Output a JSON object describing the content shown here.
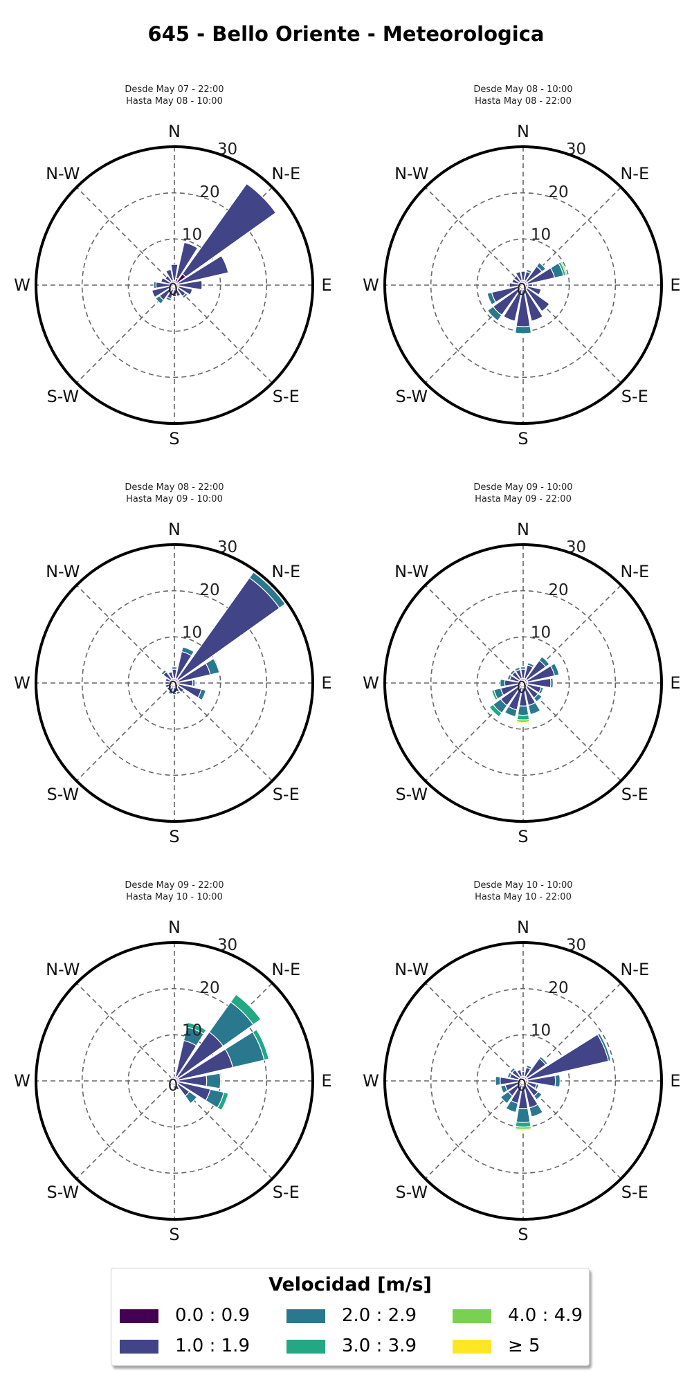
{
  "title": "645 - Bello Oriente - Meteorologica",
  "legend": {
    "title": "Velocidad [m/s]",
    "bins": [
      {
        "label": "0.0 : 0.9",
        "color": "#440154"
      },
      {
        "label": "1.0 : 1.9",
        "color": "#414487"
      },
      {
        "label": "2.0 : 2.9",
        "color": "#2a788e"
      },
      {
        "label": "3.0 : 3.9",
        "color": "#22a884"
      },
      {
        "label": "4.0 : 4.9",
        "color": "#7ad151"
      },
      {
        "label": "≥  5",
        "color": "#fde725"
      }
    ]
  },
  "chart_data": [
    {
      "type": "windrose",
      "subtitle_line1": "Desde May 07 - 22:00",
      "subtitle_line2": "Hasta May 08 - 10:00",
      "directions": [
        "N",
        "NNE",
        "NE",
        "ENE",
        "E",
        "ESE",
        "SE",
        "SSE",
        "S",
        "SSW",
        "SW",
        "WSW",
        "W",
        "WNW",
        "NW",
        "NNW"
      ],
      "stacks": [
        [
          1,
          3.5,
          0,
          0,
          0,
          0
        ],
        [
          1.5,
          8,
          0,
          0,
          0,
          0
        ],
        [
          3,
          24,
          0,
          0,
          0,
          0
        ],
        [
          1,
          11,
          0,
          0,
          0,
          0
        ],
        [
          1,
          5,
          0,
          0,
          0,
          0
        ],
        [
          1,
          3,
          0,
          0,
          0,
          0
        ],
        [
          1,
          2,
          0.5,
          0,
          0,
          0
        ],
        [
          1,
          1.5,
          0,
          0,
          0,
          0
        ],
        [
          1,
          1.5,
          0,
          0,
          0,
          0
        ],
        [
          1,
          2,
          0.5,
          0,
          0,
          0
        ],
        [
          1,
          3,
          1,
          0,
          0,
          0
        ],
        [
          1,
          4,
          0,
          0,
          0,
          0
        ],
        [
          1,
          3,
          0.5,
          0,
          0,
          0
        ],
        [
          1,
          2,
          0,
          0,
          0,
          0
        ],
        [
          1,
          1.5,
          0,
          0,
          0,
          0
        ],
        [
          1,
          2.5,
          0,
          0,
          0,
          0
        ]
      ],
      "rings": [
        0,
        10,
        20,
        30
      ],
      "rmax": 30,
      "compass_labels": [
        "N",
        "N-E",
        "E",
        "S-E",
        "S",
        "S-W",
        "W",
        "N-W"
      ]
    },
    {
      "type": "windrose",
      "subtitle_line1": "Desde May 08 - 10:00",
      "subtitle_line2": "Hasta May 08 - 22:00",
      "directions": [
        "N",
        "NNE",
        "NE",
        "ENE",
        "E",
        "ESE",
        "SE",
        "SSE",
        "S",
        "SSW",
        "SW",
        "WSW",
        "W",
        "WNW",
        "NW",
        "NNW"
      ],
      "stacks": [
        [
          1,
          2,
          0,
          0,
          0,
          0
        ],
        [
          1,
          2,
          0.5,
          0,
          0,
          0
        ],
        [
          1,
          4,
          1,
          0,
          0,
          0
        ],
        [
          1,
          6,
          2,
          0.5,
          0.3,
          0
        ],
        [
          1,
          1,
          0,
          0,
          0,
          0
        ],
        [
          1,
          3,
          0,
          0,
          0,
          0
        ],
        [
          1,
          6,
          0,
          0,
          0,
          0
        ],
        [
          1,
          7,
          0,
          0,
          0,
          0
        ],
        [
          1,
          8,
          1.5,
          0,
          0,
          0
        ],
        [
          1,
          7,
          0,
          0,
          0,
          0
        ],
        [
          1,
          7,
          1.5,
          0,
          0,
          0
        ],
        [
          1,
          6,
          1,
          0,
          0,
          0
        ],
        [
          1,
          2,
          0,
          0,
          0,
          0
        ],
        [
          1,
          1.5,
          0,
          0,
          0,
          0
        ],
        [
          1,
          1.5,
          0,
          0,
          0,
          0
        ],
        [
          1,
          2,
          0,
          0,
          0,
          0
        ]
      ],
      "rings": [
        0,
        10,
        20,
        30
      ],
      "rmax": 30,
      "compass_labels": [
        "N",
        "N-E",
        "E",
        "S-E",
        "S",
        "S-W",
        "W",
        "N-W"
      ]
    },
    {
      "type": "windrose",
      "subtitle_line1": "Desde May 08 - 22:00",
      "subtitle_line2": "Hasta May 09 - 10:00",
      "directions": [
        "N",
        "NNE",
        "NE",
        "ENE",
        "E",
        "ESE",
        "SE",
        "SSE",
        "S",
        "SSW",
        "SW",
        "WSW",
        "W",
        "WNW",
        "NW",
        "NNW"
      ],
      "stacks": [
        [
          1,
          2,
          0.5,
          0,
          0,
          0
        ],
        [
          1,
          6,
          1,
          0,
          0,
          0
        ],
        [
          1,
          27,
          1.5,
          0,
          0,
          0
        ],
        [
          1,
          7,
          2,
          0,
          0,
          0
        ],
        [
          1,
          3,
          0.5,
          0,
          0,
          0
        ],
        [
          1,
          5,
          1,
          0,
          0,
          0
        ],
        [
          1,
          1.5,
          0,
          0,
          0,
          0
        ],
        [
          1,
          1,
          0.5,
          0,
          0,
          0
        ],
        [
          1,
          1,
          0.5,
          0,
          0,
          0
        ],
        [
          1,
          1,
          0.5,
          0,
          0,
          0
        ],
        [
          1,
          1,
          0,
          0,
          0,
          0
        ],
        [
          1,
          1,
          0,
          0,
          0,
          0
        ],
        [
          1,
          1,
          0,
          0,
          0,
          0
        ],
        [
          1,
          1,
          0,
          0,
          0,
          0
        ],
        [
          1,
          2,
          0.5,
          0,
          0,
          0
        ],
        [
          1,
          1.5,
          0,
          0,
          0,
          0
        ]
      ],
      "rings": [
        0,
        10,
        20,
        30
      ],
      "rmax": 30,
      "compass_labels": [
        "N",
        "N-E",
        "E",
        "S-E",
        "S",
        "S-W",
        "W",
        "N-W"
      ]
    },
    {
      "type": "windrose",
      "subtitle_line1": "Desde May 09 - 10:00",
      "subtitle_line2": "Hasta May 09 - 22:00",
      "directions": [
        "N",
        "NNE",
        "NE",
        "ENE",
        "E",
        "ESE",
        "SE",
        "SSE",
        "S",
        "SSW",
        "SW",
        "WSW",
        "W",
        "WNW",
        "NW",
        "NNW"
      ],
      "stacks": [
        [
          1,
          2,
          0.5,
          0,
          0,
          0
        ],
        [
          1,
          3,
          0.5,
          0,
          0,
          0
        ],
        [
          1,
          5,
          1,
          0,
          0,
          0
        ],
        [
          1,
          6,
          1,
          0,
          0,
          0
        ],
        [
          1,
          5,
          0.5,
          0,
          0,
          0
        ],
        [
          1,
          3,
          0.5,
          0,
          0,
          0
        ],
        [
          1,
          3,
          1,
          0,
          0,
          0
        ],
        [
          1,
          4,
          2,
          0,
          0,
          0
        ],
        [
          1,
          4,
          2,
          1,
          0.5,
          0.3
        ],
        [
          1,
          5,
          1.5,
          0,
          0,
          0
        ],
        [
          1,
          5,
          2,
          1,
          0,
          0
        ],
        [
          1,
          4,
          1.5,
          0.5,
          0,
          0
        ],
        [
          1,
          3,
          1,
          0,
          0,
          0
        ],
        [
          1,
          2,
          0.5,
          0,
          0,
          0
        ],
        [
          1,
          2,
          0.5,
          0,
          0,
          0
        ],
        [
          1,
          2,
          0.5,
          0,
          0,
          0
        ]
      ],
      "rings": [
        0,
        10,
        20,
        30
      ],
      "rmax": 30,
      "compass_labels": [
        "N",
        "N-E",
        "E",
        "S-E",
        "S",
        "S-W",
        "W",
        "N-W"
      ]
    },
    {
      "type": "windrose",
      "subtitle_line1": "Desde May 09 - 22:00",
      "subtitle_line2": "Hasta May 10 - 10:00",
      "directions": [
        "N",
        "NNE",
        "NE",
        "ENE",
        "E",
        "ESE",
        "SE",
        "SSE",
        "S",
        "SSW",
        "SW",
        "WSW",
        "W",
        "WNW",
        "NW",
        "NNW"
      ],
      "stacks": [
        [
          0.5,
          1,
          0,
          0,
          0,
          0
        ],
        [
          1,
          8,
          3,
          1,
          0,
          0
        ],
        [
          1,
          12,
          8,
          2,
          0,
          0
        ],
        [
          1,
          12,
          7,
          1,
          0,
          0
        ],
        [
          1,
          6,
          3,
          0,
          0,
          0
        ],
        [
          1,
          7,
          3,
          1,
          0,
          0
        ],
        [
          1,
          3,
          2,
          0,
          0,
          0
        ],
        [
          1,
          1,
          0,
          0,
          0,
          0
        ],
        [
          0.5,
          0.5,
          0,
          0,
          0,
          0
        ],
        [
          0.5,
          0.5,
          0,
          0,
          0,
          0
        ],
        [
          0.5,
          0.5,
          0,
          0,
          0,
          0
        ],
        [
          0.5,
          0.5,
          0,
          0,
          0,
          0
        ],
        [
          0.5,
          0.5,
          0,
          0,
          0,
          0
        ],
        [
          0.5,
          0.5,
          0,
          0,
          0,
          0
        ],
        [
          0.5,
          0.5,
          0,
          0,
          0,
          0
        ],
        [
          0.5,
          0.5,
          0,
          0,
          0,
          0
        ]
      ],
      "rings": [
        0,
        10,
        20,
        30
      ],
      "rmax": 30,
      "compass_labels": [
        "N",
        "N-E",
        "E",
        "S-E",
        "S",
        "S-W",
        "W",
        "N-W"
      ]
    },
    {
      "type": "windrose",
      "subtitle_line1": "Desde May 10 - 10:00",
      "subtitle_line2": "Hasta May 10 - 22:00",
      "directions": [
        "N",
        "NNE",
        "NE",
        "ENE",
        "E",
        "ESE",
        "SE",
        "SSE",
        "S",
        "SSW",
        "SW",
        "WSW",
        "W",
        "WNW",
        "NW",
        "NNW"
      ],
      "stacks": [
        [
          1,
          1,
          0,
          0,
          0,
          0
        ],
        [
          1,
          2,
          0.5,
          0,
          0,
          0
        ],
        [
          1,
          5,
          0.5,
          0,
          0,
          0
        ],
        [
          1,
          18,
          0.5,
          0,
          0,
          0
        ],
        [
          1,
          6,
          1,
          0,
          0,
          0
        ],
        [
          1,
          2,
          0.5,
          0,
          0,
          0
        ],
        [
          1,
          3,
          1,
          0,
          0,
          0
        ],
        [
          1,
          5,
          2,
          0,
          0,
          0
        ],
        [
          1,
          5,
          3,
          1,
          0.5,
          0.3
        ],
        [
          1,
          4,
          2,
          0,
          0,
          0
        ],
        [
          1,
          3,
          2,
          0,
          0,
          0
        ],
        [
          1,
          3,
          1,
          0,
          0,
          0
        ],
        [
          1,
          4,
          1,
          0,
          0,
          0
        ],
        [
          1,
          2,
          0.5,
          0,
          0,
          0
        ],
        [
          1,
          2,
          0.5,
          0,
          0,
          0
        ],
        [
          1,
          1.5,
          0,
          0,
          0,
          0
        ]
      ],
      "rings": [
        0,
        10,
        20,
        30
      ],
      "rmax": 30,
      "compass_labels": [
        "N",
        "N-E",
        "E",
        "S-E",
        "S",
        "S-W",
        "W",
        "N-W"
      ]
    }
  ]
}
